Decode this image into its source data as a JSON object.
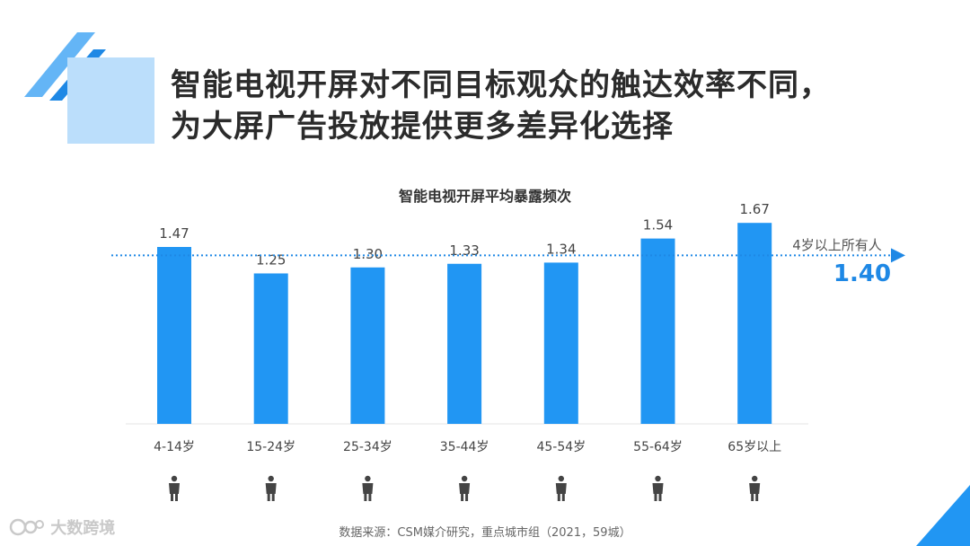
{
  "title": {
    "line1": "智能电视开屏对不同目标观众的触达效率不同，",
    "line2": "为大屏广告投放提供更多差异化选择"
  },
  "reference": {
    "label": "4岁以上所有人",
    "value_text": "1.40",
    "value": 1.4
  },
  "source": "数据来源：CSM媒介研究，重点城市组（2021，59城）",
  "brand": {
    "name": "大数跨境",
    "icon": "brand-logo-icon"
  },
  "colors": {
    "bar": "#2196f3",
    "accent": "#1e88e5",
    "reference_line": "#1e88e5",
    "deco": "#64b5f6"
  },
  "icons": [
    "child-icon",
    "teen-icon",
    "man-icon",
    "man-icon",
    "woman-icon",
    "woman-icon",
    "elderly-icon"
  ],
  "chart_data": {
    "type": "bar",
    "title": "智能电视开屏平均暴露频次",
    "categories": [
      "4-14岁",
      "15-24岁",
      "25-34岁",
      "35-44岁",
      "45-54岁",
      "55-64岁",
      "65岁以上"
    ],
    "values": [
      1.47,
      1.25,
      1.3,
      1.33,
      1.34,
      1.54,
      1.67
    ],
    "value_labels": [
      "1.47",
      "1.25",
      "1.30",
      "1.33",
      "1.34",
      "1.54",
      "1.67"
    ],
    "xlabel": "",
    "ylabel": "",
    "grid": false
  }
}
